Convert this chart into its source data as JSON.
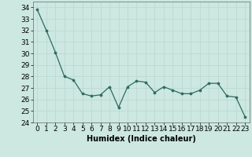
{
  "x": [
    0,
    1,
    2,
    3,
    4,
    5,
    6,
    7,
    8,
    9,
    10,
    11,
    12,
    13,
    14,
    15,
    16,
    17,
    18,
    19,
    20,
    21,
    22,
    23
  ],
  "y": [
    33.8,
    32.0,
    30.1,
    28.0,
    27.7,
    26.5,
    26.3,
    26.4,
    27.1,
    25.3,
    27.1,
    27.6,
    27.5,
    26.6,
    27.1,
    26.8,
    26.5,
    26.5,
    26.8,
    27.4,
    27.4,
    26.3,
    26.2,
    24.5
  ],
  "line_color": "#2e6b5e",
  "marker_color": "#2e6b5e",
  "bg_color": "#cce8e0",
  "grid_color": "#b8d8d0",
  "xlabel": "Humidex (Indice chaleur)",
  "xlim": [
    -0.5,
    23.5
  ],
  "ylim": [
    24,
    34.5
  ],
  "yticks": [
    24,
    25,
    26,
    27,
    28,
    29,
    30,
    31,
    32,
    33,
    34
  ],
  "xticks": [
    0,
    1,
    2,
    3,
    4,
    5,
    6,
    7,
    8,
    9,
    10,
    11,
    12,
    13,
    14,
    15,
    16,
    17,
    18,
    19,
    20,
    21,
    22,
    23
  ],
  "label_fontsize": 7,
  "tick_fontsize": 6.5
}
